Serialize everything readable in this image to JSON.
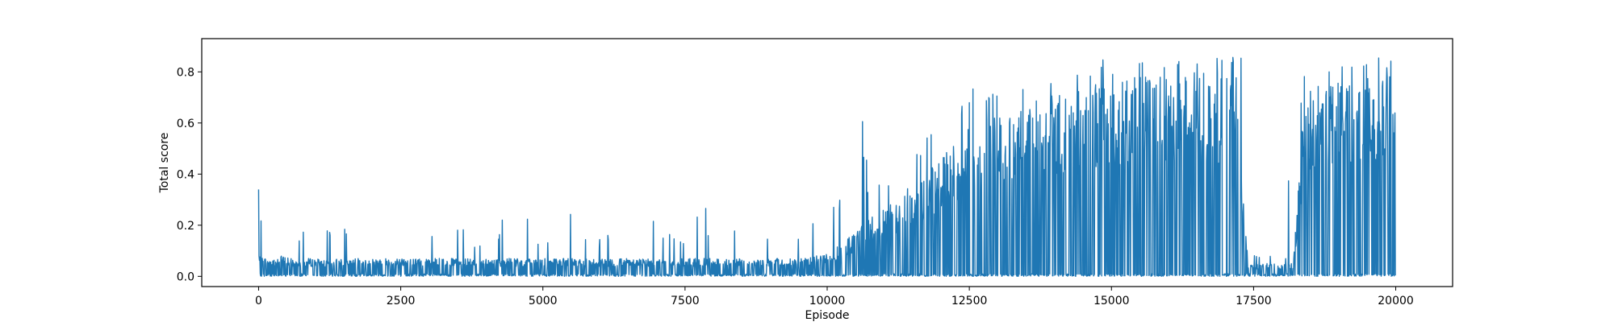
{
  "chart_data": {
    "type": "line",
    "title": "",
    "xlabel": "Episode",
    "ylabel": "Total score",
    "xlim": [
      -1000,
      21000
    ],
    "ylim": [
      -0.04,
      0.93
    ],
    "xticks": [
      0,
      2500,
      5000,
      7500,
      10000,
      12500,
      15000,
      17500,
      20000
    ],
    "yticks": [
      0.0,
      0.2,
      0.4,
      0.6,
      0.8
    ],
    "xtick_labels": [
      "0",
      "2500",
      "5000",
      "7500",
      "10000",
      "12500",
      "15000",
      "17500",
      "20000"
    ],
    "ytick_labels": [
      "0.0",
      "0.2",
      "0.4",
      "0.6",
      "0.8"
    ],
    "grid": false,
    "legend": "none",
    "series": [
      {
        "color": "#1f77b4",
        "x": [
          0,
          200,
          400,
          600,
          800,
          1000,
          1200,
          1400,
          1600,
          1800,
          2000,
          2200,
          2400,
          2600,
          2800,
          3000,
          3200,
          3400,
          3600,
          3800,
          4000,
          4200,
          4400,
          4600,
          4800,
          5000,
          5200,
          5400,
          5600,
          5800,
          6000,
          6200,
          6400,
          6600,
          6800,
          7000,
          7200,
          7400,
          7600,
          7800,
          8000,
          8200,
          8400,
          8600,
          8800,
          9000,
          9200,
          9400,
          9600,
          9800,
          10000,
          10200,
          10400,
          10600,
          10800,
          11000,
          11200,
          11400,
          11600,
          11800,
          12000,
          12200,
          12400,
          12600,
          12800,
          13000,
          13200,
          13400,
          13600,
          13800,
          14000,
          14200,
          14400,
          14600,
          14800,
          15000,
          15200,
          15400,
          15600,
          15800,
          16000,
          16200,
          16400,
          16600,
          16800,
          17000,
          17200,
          17400,
          17600,
          17800,
          18000,
          18200,
          18400,
          18600,
          18800,
          19000,
          19200,
          19400,
          19600,
          19800,
          20000
        ],
        "y_max": [
          0.34,
          0.19,
          0.29,
          0.15,
          0.19,
          0.23,
          0.18,
          0.14,
          0.2,
          0.17,
          0.19,
          0.17,
          0.16,
          0.19,
          0.23,
          0.16,
          0.22,
          0.2,
          0.23,
          0.14,
          0.21,
          0.22,
          0.18,
          0.15,
          0.25,
          0.17,
          0.2,
          0.31,
          0.17,
          0.2,
          0.15,
          0.18,
          0.19,
          0.15,
          0.31,
          0.24,
          0.22,
          0.15,
          0.2,
          0.27,
          0.19,
          0.25,
          0.24,
          0.18,
          0.19,
          0.16,
          0.2,
          0.16,
          0.23,
          0.22,
          0.39,
          0.33,
          0.44,
          0.69,
          0.34,
          0.37,
          0.5,
          0.55,
          0.52,
          0.6,
          0.64,
          0.68,
          0.7,
          0.74,
          0.74,
          0.72,
          0.74,
          0.75,
          0.73,
          0.76,
          0.76,
          0.8,
          0.8,
          0.8,
          0.86,
          0.8,
          0.85,
          0.84,
          0.86,
          0.85,
          0.84,
          0.86,
          0.85,
          0.86,
          0.86,
          0.85,
          0.86,
          0.63,
          0.09,
          0.08,
          0.07,
          0.41,
          0.8,
          0.8,
          0.81,
          0.83,
          0.82,
          0.84,
          0.88,
          0.87,
          0.85
        ],
        "y_band": [
          0.08,
          0.07,
          0.08,
          0.07,
          0.07,
          0.07,
          0.06,
          0.07,
          0.07,
          0.07,
          0.07,
          0.07,
          0.07,
          0.07,
          0.07,
          0.07,
          0.07,
          0.07,
          0.07,
          0.07,
          0.07,
          0.07,
          0.07,
          0.07,
          0.07,
          0.07,
          0.07,
          0.07,
          0.07,
          0.07,
          0.07,
          0.07,
          0.07,
          0.07,
          0.07,
          0.07,
          0.07,
          0.07,
          0.07,
          0.07,
          0.07,
          0.07,
          0.07,
          0.07,
          0.07,
          0.07,
          0.07,
          0.07,
          0.07,
          0.08,
          0.09,
          0.12,
          0.16,
          0.2,
          0.24,
          0.26,
          0.3,
          0.34,
          0.38,
          0.42,
          0.46,
          0.52,
          0.56,
          0.6,
          0.63,
          0.64,
          0.66,
          0.67,
          0.68,
          0.7,
          0.72,
          0.74,
          0.75,
          0.76,
          0.77,
          0.77,
          0.78,
          0.78,
          0.79,
          0.79,
          0.79,
          0.79,
          0.8,
          0.8,
          0.8,
          0.8,
          0.8,
          0.05,
          0.05,
          0.05,
          0.05,
          0.05,
          0.74,
          0.76,
          0.77,
          0.78,
          0.79,
          0.8,
          0.81,
          0.82,
          0.82
        ],
        "y_min": 0.0
      }
    ]
  }
}
